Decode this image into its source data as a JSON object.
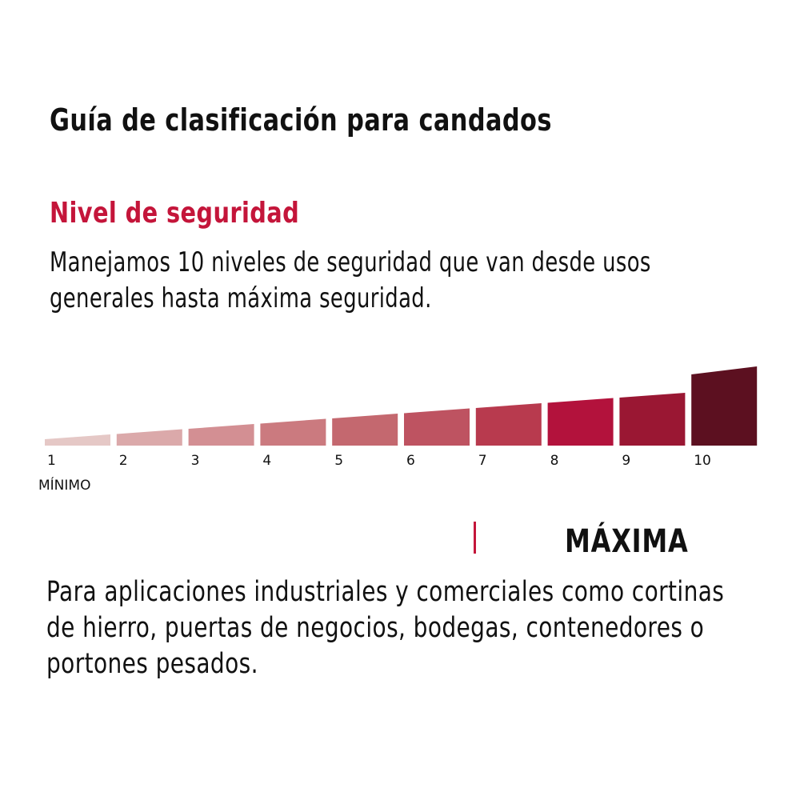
{
  "title": "Guía de clasificación para candados",
  "subtitle": "Nivel de seguridad",
  "description": "Manejamos 10 niveles de seguridad que van desde usos generales hasta máxima seguridad.",
  "colors": {
    "accent": "#c4153a",
    "text": "#111111"
  },
  "chart_data": {
    "type": "bar",
    "title": "Nivel de seguridad",
    "categories": [
      "1",
      "2",
      "3",
      "4",
      "5",
      "6",
      "7",
      "8",
      "9",
      "10"
    ],
    "values": [
      1,
      2,
      3,
      4,
      5,
      6,
      7,
      8,
      9,
      10
    ],
    "bar_colors": [
      "#e5c8c6",
      "#dba9aa",
      "#d38f93",
      "#cb7a7f",
      "#c4686f",
      "#be5361",
      "#b83a4e",
      "#b3123c",
      "#9a1733",
      "#5c1020"
    ],
    "min_label": "MÍNIMO",
    "ylim": [
      0,
      10
    ]
  },
  "highlight": {
    "level": "MÁXIMA",
    "description": "Para aplicaciones industriales y comerciales como cortinas de hierro, puertas de negocios, bodegas, contenedores o portones pesados."
  }
}
